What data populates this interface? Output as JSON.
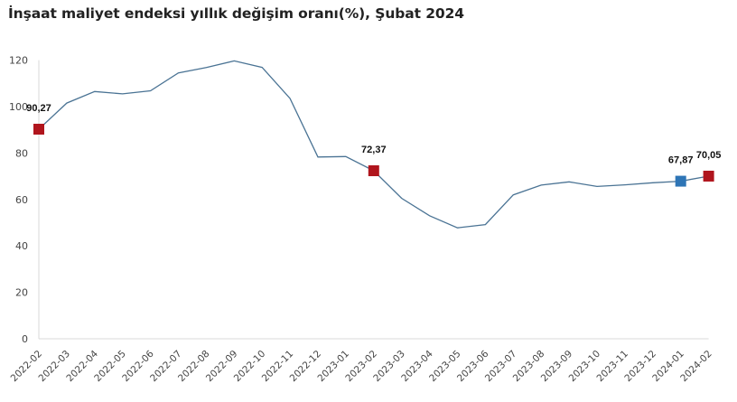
{
  "chart_data": {
    "type": "line",
    "title": "İnşaat maliyet endeksi yıllık değişim oranı(%), Şubat 2024",
    "xlabel": "",
    "ylabel": "",
    "ylim": [
      0,
      120
    ],
    "yticks": [
      0,
      20,
      40,
      60,
      80,
      100,
      120
    ],
    "grid": false,
    "legend": null,
    "categories": [
      "2022-02",
      "2022-03",
      "2022-04",
      "2022-05",
      "2022-06",
      "2022-07",
      "2022-08",
      "2022-09",
      "2022-10",
      "2022-11",
      "2022-12",
      "2023-01",
      "2023-02",
      "2023-03",
      "2023-04",
      "2023-05",
      "2023-06",
      "2023-07",
      "2023-08",
      "2023-09",
      "2023-10",
      "2023-11",
      "2023-12",
      "2024-01",
      "2024-02"
    ],
    "series": [
      {
        "name": "Yıllık değişim oranı (%)",
        "values": [
          90.27,
          101.5,
          106.5,
          105.5,
          106.8,
          114.5,
          116.8,
          119.7,
          116.9,
          103.5,
          78.3,
          78.5,
          72.37,
          60.5,
          53.0,
          47.8,
          49.2,
          62.0,
          66.2,
          67.6,
          65.6,
          66.3,
          67.2,
          67.87,
          70.05
        ]
      }
    ],
    "annotations": [
      {
        "category": "2022-02",
        "value": 90.27,
        "label": "90,27",
        "marker_color": "#b0151d"
      },
      {
        "category": "2023-02",
        "value": 72.37,
        "label": "72,37",
        "marker_color": "#b0151d"
      },
      {
        "category": "2024-01",
        "value": 67.87,
        "label": "67,87",
        "marker_color": "#2e75b6"
      },
      {
        "category": "2024-02",
        "value": 70.05,
        "label": "70,05",
        "marker_color": "#b0151d"
      }
    ],
    "colors": {
      "line": "#4a7394",
      "axis": "#d9d9d9"
    }
  }
}
